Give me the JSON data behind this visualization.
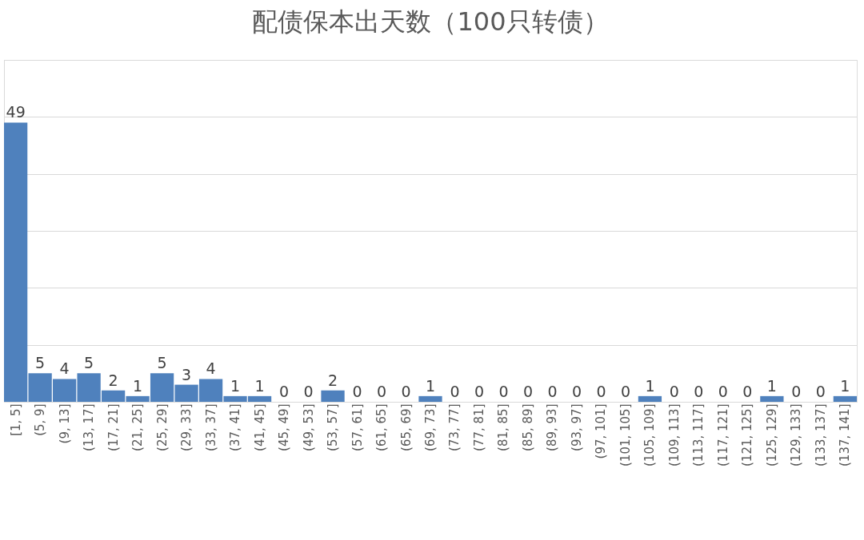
{
  "chart_data": {
    "type": "bar",
    "title": "配债保本出天数（100只转债）",
    "categories": [
      "[1, 5]",
      "(5, 9]",
      "(9, 13]",
      "(13, 17]",
      "(17, 21]",
      "(21, 25]",
      "(25, 29]",
      "(29, 33]",
      "(33, 37]",
      "(37, 41]",
      "(41, 45]",
      "(45, 49]",
      "(49, 53]",
      "(53, 57]",
      "(57, 61]",
      "(61, 65]",
      "(65, 69]",
      "(69, 73]",
      "(73, 77]",
      "(77, 81]",
      "(81, 85]",
      "(85, 89]",
      "(89, 93]",
      "(93, 97]",
      "(97, 101]",
      "(101, 105]",
      "(105, 109]",
      "(109, 113]",
      "(113, 117]",
      "(117, 121]",
      "(121, 125]",
      "(125, 129]",
      "(129, 133]",
      "(133, 137]",
      "(137, 141]"
    ],
    "values": [
      49,
      5,
      4,
      5,
      2,
      1,
      5,
      3,
      4,
      1,
      1,
      0,
      0,
      2,
      0,
      0,
      0,
      1,
      0,
      0,
      0,
      0,
      0,
      0,
      0,
      0,
      1,
      0,
      0,
      0,
      0,
      1,
      0,
      0,
      1
    ],
    "color": "#4f81bd",
    "ylim": [
      0,
      60
    ],
    "yticks": [
      {
        "value": 0,
        "label": null
      },
      {
        "value": 10,
        "label": null
      },
      {
        "value": 20,
        "label": null
      },
      {
        "value": 30,
        "label": null
      },
      {
        "value": 40,
        "label": null
      },
      {
        "value": 50,
        "label": null
      },
      {
        "value": 60,
        "label": null
      }
    ],
    "tick_labels": "x",
    "grid": "y",
    "data_labels": true
  }
}
